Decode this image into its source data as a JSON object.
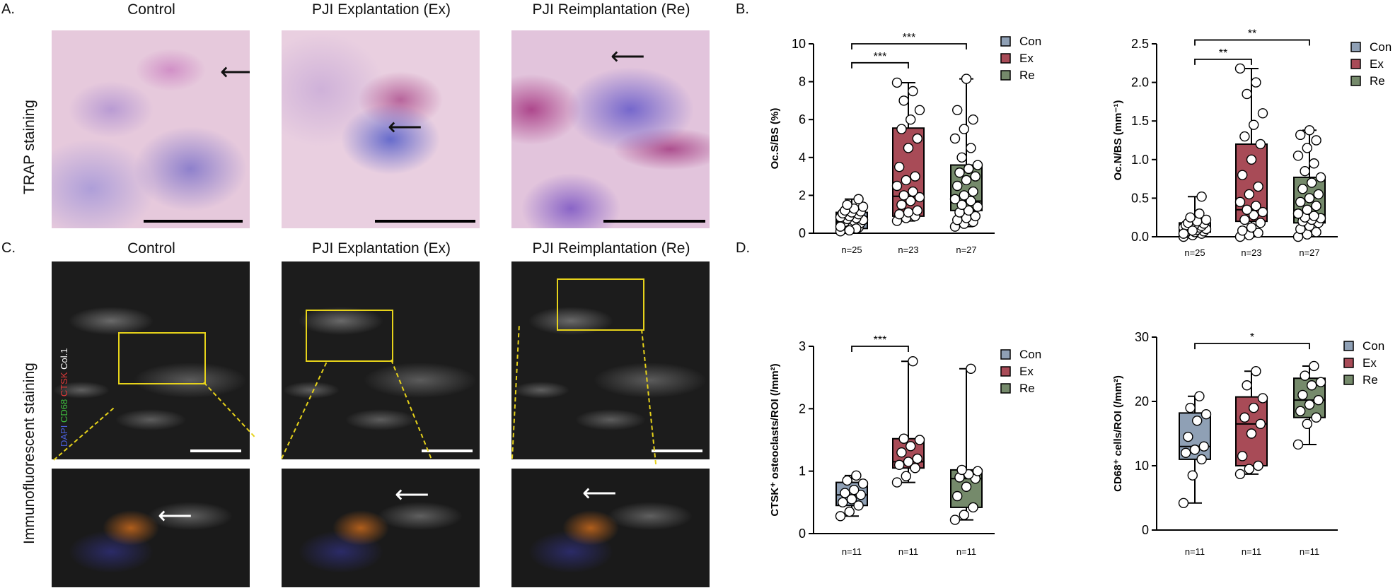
{
  "panels": {
    "A": "A.",
    "B": "B.",
    "C": "C.",
    "D": "D."
  },
  "columns": [
    "Control",
    "PJI Explantation (Ex)",
    "PJI Reimplantation (Re)"
  ],
  "rows": {
    "trap": "TRAP staining",
    "if": "Immunofluorescent staining"
  },
  "channels": {
    "dapi": "DAPI",
    "cd68": "CD68",
    "ctsk": "CTSK",
    "col1": "Col.1"
  },
  "colors": {
    "con": "#8fa0b5",
    "ex": "#a84b57",
    "re": "#758a6b",
    "dapi": "#4a5fd8",
    "cd68": "#3fbf3f",
    "ctsk": "#e23a3a",
    "col1": "#ffffff"
  },
  "chart_data": [
    {
      "type": "box",
      "id": "ocs",
      "ylabel": "Oc.S/BS (%)",
      "ylim": [
        0,
        10
      ],
      "yticks": [
        "0",
        "2",
        "4",
        "6",
        "8",
        "10"
      ],
      "ytick_values": [
        0,
        2,
        4,
        6,
        8,
        10
      ],
      "categories": [
        "Con",
        "Ex",
        "Re"
      ],
      "counts": [
        "n=25",
        "n=23",
        "n=27"
      ],
      "legend": [
        "Con",
        "Ex",
        "Re"
      ],
      "boxes": [
        {
          "min": 0.05,
          "q1": 0.25,
          "median": 0.6,
          "q3": 1.1,
          "max": 1.8
        },
        {
          "min": 0.65,
          "q1": 0.9,
          "median": 1.95,
          "q3": 5.55,
          "max": 7.95
        },
        {
          "min": 0.35,
          "q1": 1.2,
          "median": 1.7,
          "q3": 3.6,
          "max": 8.15
        }
      ],
      "points": [
        [
          0.1,
          0.2,
          0.3,
          0.4,
          0.5,
          0.55,
          0.6,
          0.65,
          0.7,
          0.75,
          0.8,
          0.85,
          0.9,
          1.0,
          1.05,
          1.1,
          1.15,
          1.2,
          1.3,
          1.4,
          1.5,
          0.25,
          0.35,
          0.15,
          1.8
        ],
        [
          0.65,
          0.8,
          0.9,
          1.0,
          1.1,
          1.2,
          1.5,
          1.7,
          1.9,
          2.0,
          2.2,
          2.5,
          2.8,
          3.0,
          3.5,
          4.5,
          5.0,
          5.5,
          6.0,
          6.5,
          7.0,
          7.5,
          7.95
        ],
        [
          0.35,
          0.5,
          0.6,
          0.7,
          0.8,
          0.9,
          1.1,
          1.2,
          1.4,
          1.5,
          1.7,
          1.8,
          2.0,
          2.2,
          2.5,
          2.8,
          3.0,
          3.2,
          3.4,
          3.6,
          4.0,
          4.5,
          5.0,
          5.5,
          6.0,
          6.5,
          8.15
        ]
      ],
      "significance": [
        {
          "from": 0,
          "to": 1,
          "label": "***",
          "y": 9.0
        },
        {
          "from": 0,
          "to": 2,
          "label": "***",
          "y": 10.0
        }
      ]
    },
    {
      "type": "box",
      "id": "ocn",
      "ylabel": "Oc.N/BS (mm⁻¹)",
      "ylim": [
        0,
        2.5
      ],
      "yticks": [
        "0.0",
        "0.5",
        "1.0",
        "1.5",
        "2.0",
        "2.5"
      ],
      "ytick_values": [
        0,
        0.5,
        1.0,
        1.5,
        2.0,
        2.5
      ],
      "categories": [
        "Con",
        "Ex",
        "Re"
      ],
      "counts": [
        "n=25",
        "n=23",
        "n=27"
      ],
      "legend": [
        "Con",
        "Ex",
        "Re"
      ],
      "boxes": [
        {
          "min": 0.0,
          "q1": 0.06,
          "median": 0.12,
          "q3": 0.18,
          "max": 0.52
        },
        {
          "min": 0.0,
          "q1": 0.2,
          "median": 0.35,
          "q3": 1.2,
          "max": 2.18
        },
        {
          "min": 0.0,
          "q1": 0.18,
          "median": 0.25,
          "q3": 0.77,
          "max": 1.38
        }
      ],
      "points": [
        [
          0.0,
          0.02,
          0.04,
          0.05,
          0.06,
          0.07,
          0.08,
          0.09,
          0.1,
          0.11,
          0.12,
          0.12,
          0.13,
          0.14,
          0.15,
          0.16,
          0.17,
          0.18,
          0.2,
          0.22,
          0.25,
          0.3,
          0.04,
          0.08,
          0.52
        ],
        [
          0.0,
          0.02,
          0.05,
          0.08,
          0.12,
          0.18,
          0.22,
          0.28,
          0.32,
          0.35,
          0.4,
          0.45,
          0.55,
          0.65,
          0.8,
          1.0,
          1.2,
          1.3,
          1.45,
          1.6,
          1.85,
          2.0,
          2.18
        ],
        [
          0.0,
          0.03,
          0.06,
          0.1,
          0.14,
          0.18,
          0.2,
          0.22,
          0.24,
          0.25,
          0.27,
          0.3,
          0.35,
          0.4,
          0.45,
          0.5,
          0.55,
          0.62,
          0.7,
          0.77,
          0.85,
          0.95,
          1.05,
          1.15,
          1.25,
          1.32,
          1.38
        ]
      ],
      "significance": [
        {
          "from": 0,
          "to": 1,
          "label": "**",
          "y": 2.3
        },
        {
          "from": 0,
          "to": 2,
          "label": "**",
          "y": 2.55
        }
      ]
    },
    {
      "type": "box",
      "id": "ctsk",
      "ylabel": "CTSK⁺ osteoclasts/ROI (/mm²)",
      "ylim": [
        0,
        3
      ],
      "yticks": [
        "0",
        "1",
        "2",
        "3"
      ],
      "ytick_values": [
        0,
        1,
        2,
        3
      ],
      "categories": [
        "Con",
        "Ex",
        "Re"
      ],
      "counts": [
        "n=11",
        "n=11",
        "n=11"
      ],
      "legend": [
        "Con",
        "Ex",
        "Re"
      ],
      "boxes": [
        {
          "min": 0.28,
          "q1": 0.45,
          "median": 0.62,
          "q3": 0.82,
          "max": 0.93
        },
        {
          "min": 0.82,
          "q1": 1.05,
          "median": 1.15,
          "q3": 1.52,
          "max": 2.76
        },
        {
          "min": 0.22,
          "q1": 0.42,
          "median": 0.88,
          "q3": 1.02,
          "max": 2.64
        }
      ],
      "points": [
        [
          0.28,
          0.35,
          0.45,
          0.5,
          0.55,
          0.62,
          0.65,
          0.7,
          0.8,
          0.85,
          0.93
        ],
        [
          0.82,
          0.92,
          1.05,
          1.1,
          1.15,
          1.2,
          1.3,
          1.4,
          1.5,
          1.52,
          2.76
        ],
        [
          0.22,
          0.3,
          0.42,
          0.6,
          0.75,
          0.88,
          0.9,
          0.95,
          1.0,
          1.02,
          2.64
        ]
      ],
      "significance": [
        {
          "from": 0,
          "to": 1,
          "label": "***",
          "y": 3.0
        }
      ]
    },
    {
      "type": "box",
      "id": "cd68",
      "ylabel": "CD68⁺ cells/ROI (/mm²)",
      "ylim": [
        0,
        30
      ],
      "yticks": [
        "0",
        "10",
        "20",
        "30"
      ],
      "ytick_values": [
        0,
        10,
        20,
        30
      ],
      "categories": [
        "Con",
        "Ex",
        "Re"
      ],
      "counts": [
        "n=11",
        "n=11",
        "n=11"
      ],
      "legend": [
        "Con",
        "Ex",
        "Re"
      ],
      "boxes": [
        {
          "min": 4.2,
          "q1": 11.0,
          "median": 13.0,
          "q3": 18.2,
          "max": 20.8
        },
        {
          "min": 8.7,
          "q1": 10.0,
          "median": 16.5,
          "q3": 20.7,
          "max": 24.7
        },
        {
          "min": 13.3,
          "q1": 17.5,
          "median": 20.2,
          "q3": 23.6,
          "max": 25.5
        }
      ],
      "points": [
        [
          4.2,
          8.5,
          11.0,
          12.0,
          12.5,
          13.0,
          14.5,
          17.0,
          18.0,
          19.0,
          20.8
        ],
        [
          8.7,
          9.5,
          10.0,
          11.5,
          15.0,
          16.5,
          17.5,
          19.0,
          20.5,
          22.5,
          24.7
        ],
        [
          13.3,
          16.5,
          17.5,
          18.5,
          19.5,
          20.2,
          21.0,
          22.5,
          23.0,
          24.0,
          25.5
        ]
      ],
      "significance": [
        {
          "from": 0,
          "to": 2,
          "label": "*",
          "y": 29.0
        }
      ]
    }
  ]
}
